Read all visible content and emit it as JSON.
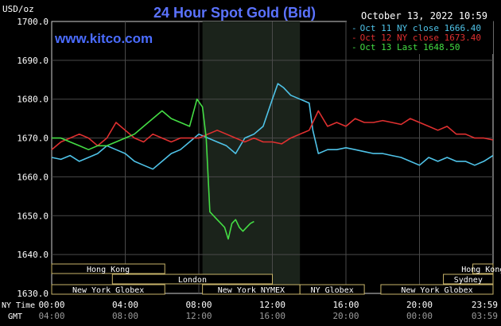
{
  "chart_data": {
    "type": "line",
    "title": "24 Hour Spot Gold (Bid)",
    "timestamp": "October 13, 2022 10:59",
    "watermark": "www.kitco.com",
    "ylabel": "USD/oz",
    "ylim": [
      1630,
      1700
    ],
    "yticks": [
      "1700.0",
      "1690.0",
      "1680.0",
      "1670.0",
      "1660.0",
      "1650.0",
      "1640.0",
      "1630.0"
    ],
    "xlim": [
      0,
      24
    ],
    "x_row1_label": "NY Time",
    "x_row2_label": "GMT",
    "xticks_ny": [
      "00:00",
      "04:00",
      "08:00",
      "12:00",
      "16:00",
      "20:00",
      "23:59"
    ],
    "xticks_gmt": [
      "04:00",
      "08:00",
      "12:00",
      "16:00",
      "20:00",
      "00:00",
      "03:59"
    ],
    "grid": true,
    "legend_position": "top-right",
    "sessions_row1": [
      {
        "label": "Hong Kong",
        "start": 0,
        "end": 6.15
      },
      {
        "label": "Hong Kong",
        "start": 22.9,
        "end": 24
      }
    ],
    "sessions_row2": [
      {
        "label": "London",
        "start": 3.3,
        "end": 12.0
      },
      {
        "label": "Sydney",
        "start": 21.3,
        "end": 24
      }
    ],
    "sessions_row3": [
      {
        "label": "New York Globex",
        "start": 0,
        "end": 6.15
      },
      {
        "label": "New York NYMEX",
        "start": 8.2,
        "end": 13.5
      },
      {
        "label": "NY Globex",
        "start": 13.5,
        "end": 17.0
      },
      {
        "label": "New York Globex",
        "start": 17.9,
        "end": 24
      }
    ],
    "shaded_region": [
      8.2,
      13.5
    ],
    "series": [
      {
        "name": "Oct 11 NY close 1666.40",
        "color": "#4FC3E8",
        "x": [
          0,
          0.5,
          1,
          1.5,
          2,
          2.5,
          3,
          3.5,
          4,
          4.5,
          5,
          5.5,
          6,
          6.5,
          7,
          7.5,
          8,
          8.5,
          9,
          9.5,
          10,
          10.5,
          11,
          11.5,
          12,
          12.3,
          12.6,
          13,
          13.5,
          14,
          14.2,
          14.5,
          15,
          15.5,
          16,
          16.5,
          17,
          17.5,
          18,
          18.5,
          19,
          19.5,
          20,
          20.5,
          21,
          21.5,
          22,
          22.5,
          23,
          23.5,
          24
        ],
        "y": [
          1665,
          1664.5,
          1665.5,
          1664,
          1665,
          1666,
          1668,
          1667,
          1666,
          1664,
          1663,
          1662,
          1664,
          1666,
          1667,
          1669,
          1671,
          1670,
          1669,
          1668,
          1666,
          1670,
          1671,
          1673,
          1680,
          1684,
          1683,
          1681,
          1680,
          1679,
          1672,
          1666,
          1667,
          1667,
          1667.5,
          1667,
          1666.5,
          1666,
          1666,
          1665.5,
          1665,
          1664,
          1663,
          1665,
          1664,
          1665,
          1664,
          1664,
          1663,
          1664,
          1665.5
        ]
      },
      {
        "name": "Oct 12 NY close 1673.40",
        "color": "#E03030",
        "x": [
          0,
          0.5,
          1,
          1.5,
          2,
          2.5,
          3,
          3.5,
          4,
          4.5,
          5,
          5.5,
          6,
          6.5,
          7,
          7.5,
          8,
          8.5,
          9,
          9.5,
          10,
          10.5,
          11,
          11.5,
          12,
          12.5,
          13,
          13.5,
          14,
          14.5,
          15,
          15.5,
          16,
          16.5,
          17,
          17.5,
          18,
          18.5,
          19,
          19.5,
          20,
          20.5,
          21,
          21.5,
          22,
          22.5,
          23,
          23.5,
          24
        ],
        "y": [
          1667,
          1669,
          1670,
          1671,
          1670,
          1668,
          1670,
          1674,
          1672,
          1670,
          1669,
          1671,
          1670,
          1669,
          1670,
          1670,
          1670,
          1671,
          1672,
          1671,
          1670,
          1669,
          1670,
          1669,
          1669,
          1668.5,
          1670,
          1671,
          1672,
          1677,
          1673,
          1674,
          1673,
          1675,
          1674,
          1674,
          1674.5,
          1674,
          1673.5,
          1675,
          1674,
          1673,
          1672,
          1673,
          1671,
          1671,
          1670,
          1670,
          1669.5
        ]
      },
      {
        "name": "Oct 13 Last 1648.50",
        "color": "#44DD44",
        "x": [
          0,
          0.5,
          1,
          1.5,
          2,
          2.5,
          3,
          3.5,
          4,
          4.5,
          5,
          5.5,
          6,
          6.5,
          7,
          7.5,
          7.9,
          8.2,
          8.4,
          8.6,
          8.8,
          9.0,
          9.2,
          9.4,
          9.6,
          9.8,
          10,
          10.2,
          10.4,
          10.6,
          10.8,
          11.0
        ],
        "y": [
          1670,
          1670,
          1669,
          1668,
          1667,
          1668,
          1668,
          1669,
          1670,
          1671,
          1673,
          1675,
          1677,
          1675,
          1674,
          1673,
          1680,
          1678,
          1670,
          1651,
          1650,
          1649,
          1648,
          1647,
          1644,
          1648,
          1649,
          1647,
          1646,
          1647,
          1648,
          1648.5
        ]
      }
    ]
  }
}
